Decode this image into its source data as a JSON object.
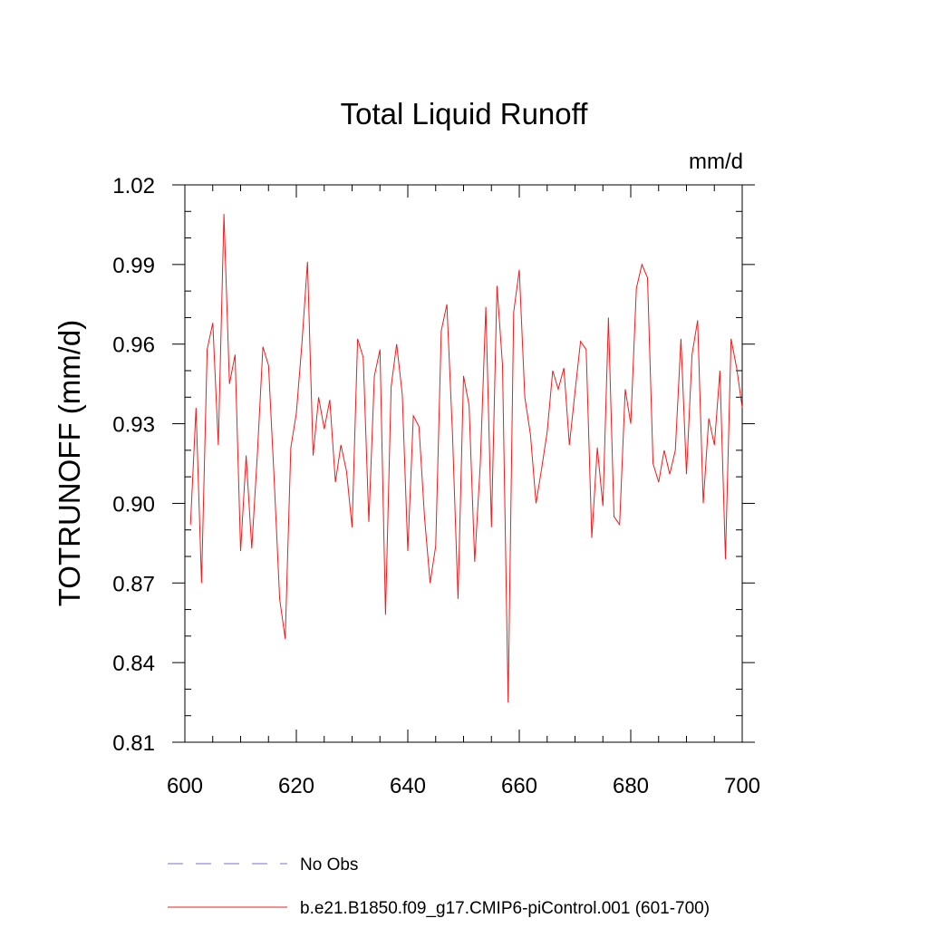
{
  "chart_data": {
    "type": "line",
    "title": "Total Liquid Runoff",
    "units": "mm/d",
    "ylabel": "TOTRUNOFF  (mm/d)",
    "xlabel": "",
    "xlim": [
      600,
      700
    ],
    "ylim": [
      0.81,
      1.02
    ],
    "x_ticks": [
      600,
      620,
      640,
      660,
      680,
      700
    ],
    "y_ticks": [
      0.81,
      0.84,
      0.87,
      0.9,
      0.93,
      0.96,
      0.99,
      1.02
    ],
    "x_tick_labels": [
      "600",
      "620",
      "640",
      "660",
      "680",
      "700"
    ],
    "y_tick_labels": [
      "0.81",
      "0.84",
      "0.87",
      "0.90",
      "0.93",
      "0.96",
      "0.99",
      "1.02"
    ],
    "grid": false,
    "legend_position": "bottom",
    "series": [
      {
        "name": "No Obs",
        "color": "#7b6fd0",
        "dash": "dashed",
        "x": [],
        "y": []
      },
      {
        "name": "b.e21.B1850.f09_g17.CMIP6-piControl.001 (601-700)",
        "color": "#ee1c1c",
        "dash": "solid",
        "x": [
          601,
          602,
          603,
          604,
          605,
          606,
          607,
          608,
          609,
          610,
          611,
          612,
          613,
          614,
          615,
          616,
          617,
          618,
          619,
          620,
          621,
          622,
          623,
          624,
          625,
          626,
          627,
          628,
          629,
          630,
          631,
          632,
          633,
          634,
          635,
          636,
          637,
          638,
          639,
          640,
          641,
          642,
          643,
          644,
          645,
          646,
          647,
          648,
          649,
          650,
          651,
          652,
          653,
          654,
          655,
          656,
          657,
          658,
          659,
          660,
          661,
          662,
          663,
          664,
          665,
          666,
          667,
          668,
          669,
          670,
          671,
          672,
          673,
          674,
          675,
          676,
          677,
          678,
          679,
          680,
          681,
          682,
          683,
          684,
          685,
          686,
          687,
          688,
          689,
          690,
          691,
          692,
          693,
          694,
          695,
          696,
          697,
          698,
          699,
          700
        ],
        "y": [
          0.892,
          0.936,
          0.87,
          0.958,
          0.968,
          0.922,
          1.009,
          0.945,
          0.956,
          0.882,
          0.918,
          0.883,
          0.918,
          0.959,
          0.952,
          0.91,
          0.864,
          0.849,
          0.921,
          0.934,
          0.96,
          0.991,
          0.918,
          0.94,
          0.928,
          0.939,
          0.908,
          0.922,
          0.912,
          0.891,
          0.962,
          0.955,
          0.893,
          0.948,
          0.958,
          0.858,
          0.944,
          0.96,
          0.941,
          0.882,
          0.933,
          0.929,
          0.895,
          0.87,
          0.884,
          0.965,
          0.975,
          0.927,
          0.864,
          0.948,
          0.937,
          0.878,
          0.915,
          0.974,
          0.891,
          0.982,
          0.952,
          0.825,
          0.972,
          0.988,
          0.94,
          0.926,
          0.9,
          0.913,
          0.927,
          0.95,
          0.943,
          0.951,
          0.922,
          0.942,
          0.961,
          0.958,
          0.887,
          0.921,
          0.899,
          0.97,
          0.895,
          0.892,
          0.943,
          0.93,
          0.981,
          0.99,
          0.985,
          0.915,
          0.908,
          0.92,
          0.911,
          0.92,
          0.962,
          0.911,
          0.956,
          0.969,
          0.9,
          0.932,
          0.922,
          0.95,
          0.879,
          0.962,
          0.951,
          0.936
        ]
      }
    ]
  }
}
